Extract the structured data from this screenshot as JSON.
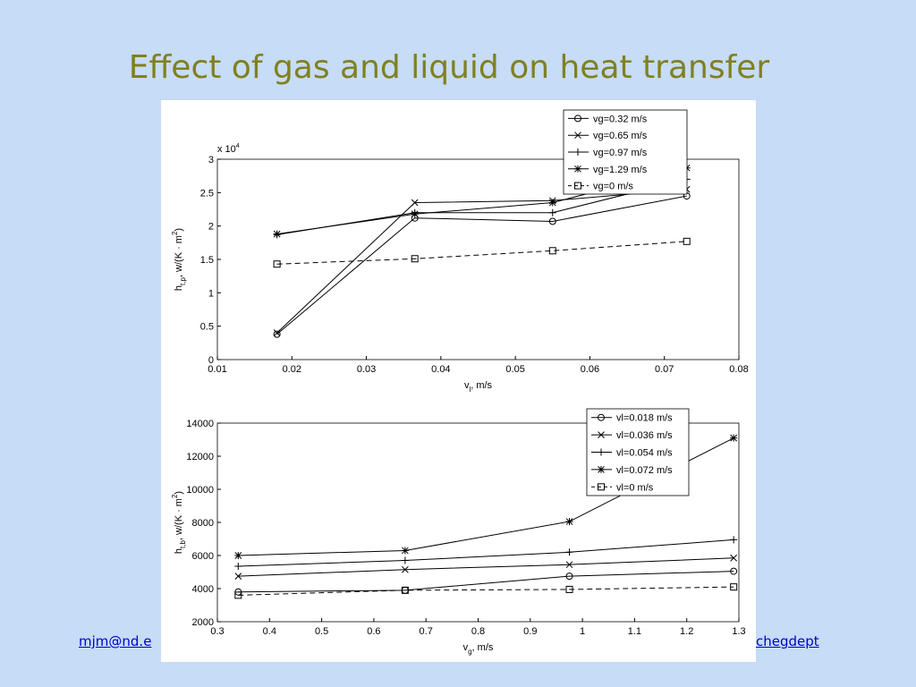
{
  "slide": {
    "title": "Effect of gas and liquid on heat transfer",
    "footer_left": "mjm@nd.e",
    "footer_right": "chegdept"
  },
  "chart_data": [
    {
      "type": "line",
      "y_multiplier": {
        "base": "x 10",
        "exponent": "4"
      },
      "xlabel": {
        "base": "v",
        "sub": "l",
        "rest": ", m/s"
      },
      "ylabel": {
        "base": "h",
        "sub": "t,p",
        "rest": ", w/(K · m",
        "sup": "2",
        "end": ")"
      },
      "x": [
        0.018,
        0.0365,
        0.055,
        0.073
      ],
      "xlim": [
        0.01,
        0.08
      ],
      "xticks": [
        0.01,
        0.02,
        0.03,
        0.04,
        0.05,
        0.06,
        0.07,
        0.08
      ],
      "ylim": [
        0,
        3
      ],
      "yticks": [
        0,
        0.5,
        1,
        1.5,
        2,
        2.5,
        3
      ],
      "legend": "upper right",
      "series": [
        {
          "name": "vg=0.32 m/s",
          "color": "#000000",
          "marker": "o",
          "dashed": false,
          "values": [
            0.38,
            2.12,
            2.07,
            2.45
          ]
        },
        {
          "name": "vg=0.65 m/s",
          "color": "#000000",
          "marker": "x",
          "dashed": false,
          "values": [
            0.4,
            2.35,
            2.38,
            2.55
          ]
        },
        {
          "name": "vg=0.97 m/s",
          "color": "#000000",
          "marker": "+",
          "dashed": false,
          "values": [
            1.87,
            2.2,
            2.2,
            2.7
          ]
        },
        {
          "name": "vg=1.29 m/s",
          "color": "#000000",
          "marker": "*",
          "dashed": false,
          "values": [
            1.88,
            2.18,
            2.35,
            2.87
          ]
        },
        {
          "name": "vg=0 m/s",
          "color": "#000000",
          "marker": "s",
          "dashed": true,
          "values": [
            1.43,
            1.51,
            1.63,
            1.77
          ]
        }
      ]
    },
    {
      "type": "line",
      "xlabel": {
        "base": "v",
        "sub": "g",
        "rest": ", m/s"
      },
      "ylabel": {
        "base": "h",
        "sub": "t,b",
        "rest": ", w/(K · m",
        "sup": "2",
        "end": ")"
      },
      "x": [
        0.34,
        0.66,
        0.975,
        1.29
      ],
      "xlim": [
        0.3,
        1.3
      ],
      "xticks": [
        0.3,
        0.4,
        0.5,
        0.6,
        0.7,
        0.8,
        0.9,
        1,
        1.1,
        1.2,
        1.3
      ],
      "ylim": [
        2000,
        14000
      ],
      "yticks": [
        2000,
        4000,
        6000,
        8000,
        10000,
        12000,
        14000
      ],
      "legend": "upper right",
      "series": [
        {
          "name": "vl=0.018 m/s",
          "color": "#000000",
          "marker": "o",
          "dashed": false,
          "values": [
            3800,
            3900,
            4750,
            5050
          ]
        },
        {
          "name": "vl=0.036 m/s",
          "color": "#000000",
          "marker": "x",
          "dashed": false,
          "values": [
            4750,
            5150,
            5450,
            5850
          ]
        },
        {
          "name": "vl=0.054 m/s",
          "color": "#000000",
          "marker": "+",
          "dashed": false,
          "values": [
            5350,
            5700,
            6200,
            6950
          ]
        },
        {
          "name": "vl=0.072 m/s",
          "color": "#000000",
          "marker": "*",
          "dashed": false,
          "values": [
            6000,
            6300,
            8050,
            13100
          ]
        },
        {
          "name": "vl=0 m/s",
          "color": "#000000",
          "marker": "s",
          "dashed": true,
          "values": [
            3600,
            3900,
            3950,
            4100
          ]
        }
      ]
    }
  ]
}
